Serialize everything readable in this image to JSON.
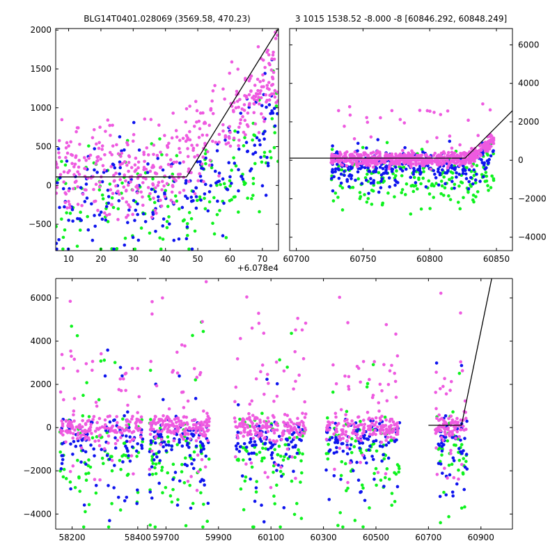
{
  "chart_data": [
    {
      "id": "top_left",
      "type": "scatter",
      "title": "BLG14T0401.028069 (3569.58, 470.23)",
      "x_offset_label": "+6.078e4",
      "xlim": [
        6,
        75
      ],
      "ylim": [
        -840,
        2020
      ],
      "xticks": [
        10,
        20,
        30,
        40,
        50,
        60,
        70
      ],
      "yticks": [
        -500,
        0,
        500,
        1000,
        1500,
        2000
      ],
      "model_line": [
        [
          6,
          110
        ],
        [
          46.5,
          110
        ],
        [
          75,
          2020
        ]
      ],
      "clusters": [
        {
          "color": "magenta",
          "x": [
            6,
            75
          ],
          "y": [
            -600,
            1900
          ],
          "n": 430
        },
        {
          "color": "blue",
          "x": [
            6,
            75
          ],
          "y": [
            -800,
            1700
          ],
          "n": 210
        },
        {
          "color": "green",
          "x": [
            6,
            75
          ],
          "y": [
            -840,
            1400
          ],
          "n": 170
        }
      ]
    },
    {
      "id": "top_right",
      "type": "scatter",
      "title": "3 1015 1538.52 -8.000 -8 [60846.292, 60848.249]",
      "xlim": [
        60695,
        60862
      ],
      "ylim": [
        -4700,
        6850
      ],
      "xticks": [
        60700,
        60750,
        60800,
        60850
      ],
      "yticks": [
        -4000,
        -2000,
        0,
        2000,
        4000,
        6000
      ],
      "model_line": [
        [
          60695,
          110
        ],
        [
          60826.5,
          110
        ],
        [
          60862,
          2580
        ]
      ],
      "clusters": [
        {
          "color": "magenta",
          "x": [
            60726,
            60848
          ],
          "y": [
            -1400,
            1500
          ],
          "n": 650
        },
        {
          "color": "blue",
          "x": [
            60726,
            60848
          ],
          "y": [
            -2200,
            900
          ],
          "n": 260
        },
        {
          "color": "green",
          "x": [
            60726,
            60848
          ],
          "y": [
            -4100,
            1000
          ],
          "n": 190
        }
      ]
    },
    {
      "id": "bottom",
      "type": "scatter",
      "xlim": [
        58150,
        61020
      ],
      "ylim": [
        -4700,
        6900
      ],
      "xticks": [
        58200,
        58400,
        59700,
        59900,
        60100,
        60300,
        60500,
        60700,
        60900
      ],
      "yticks": [
        -4000,
        -2000,
        0,
        2000,
        4000,
        6000
      ],
      "model_line": [
        [
          60700,
          110
        ],
        [
          60826,
          110
        ],
        [
          60941,
          6900
        ]
      ],
      "seasons": [
        {
          "x": [
            58163,
            58415
          ]
        },
        {
          "x": [
            59637,
            59865
          ]
        },
        {
          "x": [
            59960,
            60233
          ]
        },
        {
          "x": [
            60310,
            60590
          ]
        },
        {
          "x": [
            60726,
            60848
          ]
        }
      ],
      "clusters": [
        {
          "color": "magenta",
          "y": [
            -1500,
            6500
          ],
          "n": 900
        },
        {
          "color": "blue",
          "y": [
            -3900,
            5200
          ],
          "n": 480
        },
        {
          "color": "green",
          "y": [
            -4600,
            6100
          ],
          "n": 380
        }
      ]
    }
  ],
  "colors": {
    "magenta": "#ee5ae0",
    "blue": "#0e14ee",
    "green": "#0ef21e"
  }
}
